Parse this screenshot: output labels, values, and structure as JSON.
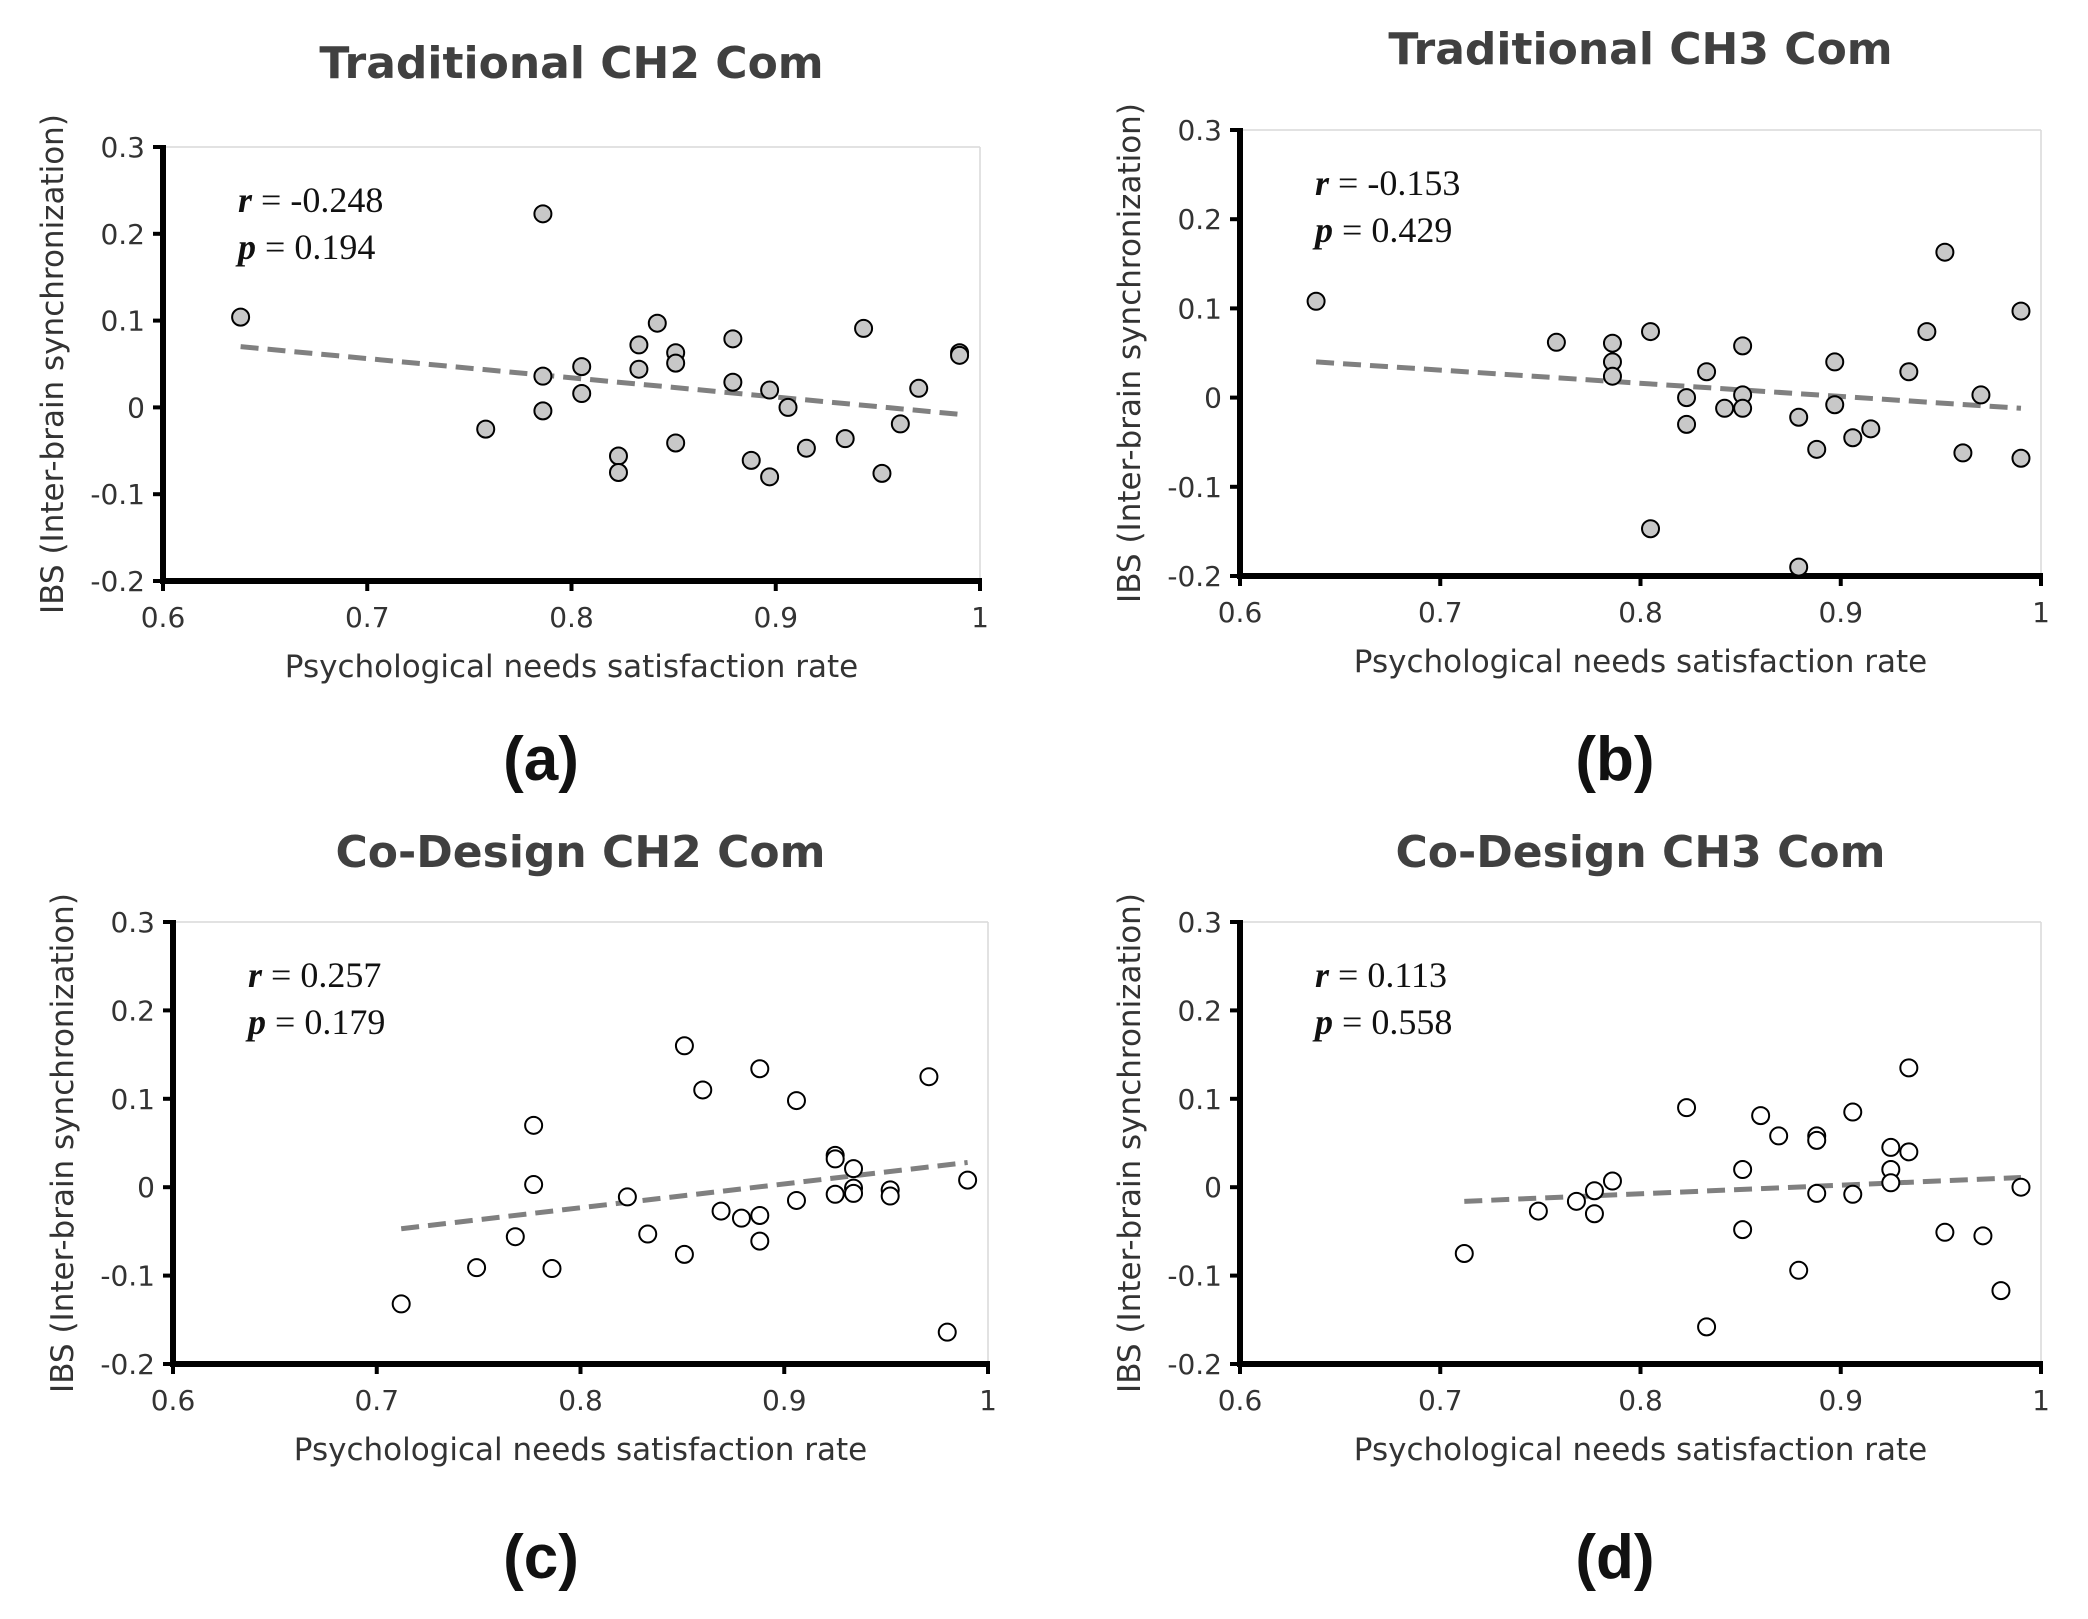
{
  "chart_data": [
    {
      "id": "a",
      "type": "scatter",
      "title": "Traditional CH2 Com",
      "panel_label": "(a)",
      "xlabel": "Psychological needs satisfaction rate",
      "ylabel": "IBS (Inter-brain synchronization)",
      "xlim": [
        0.6,
        1.0
      ],
      "ylim": [
        -0.2,
        0.3
      ],
      "xticks": [
        "0.6",
        "0.7",
        "0.8",
        "0.9",
        "1"
      ],
      "yticks": [
        "-0.2",
        "-0.1",
        "0",
        "0.1",
        "0.2",
        "0.3"
      ],
      "grid": false,
      "marker_fill": "#c8c8c8",
      "stats": {
        "r_label": "r",
        "r_value": "-0.248",
        "p_label": "p",
        "p_value": "0.194"
      },
      "trendline": {
        "x": [
          0.638,
          0.99
        ],
        "y": [
          0.07,
          -0.008
        ]
      },
      "points": [
        {
          "x": 0.638,
          "y": 0.104
        },
        {
          "x": 0.758,
          "y": -0.025
        },
        {
          "x": 0.786,
          "y": 0.223
        },
        {
          "x": 0.786,
          "y": 0.036
        },
        {
          "x": 0.786,
          "y": -0.004
        },
        {
          "x": 0.805,
          "y": 0.047
        },
        {
          "x": 0.805,
          "y": 0.016
        },
        {
          "x": 0.823,
          "y": -0.056
        },
        {
          "x": 0.823,
          "y": -0.075
        },
        {
          "x": 0.833,
          "y": 0.072
        },
        {
          "x": 0.833,
          "y": 0.044
        },
        {
          "x": 0.842,
          "y": 0.097
        },
        {
          "x": 0.851,
          "y": 0.063
        },
        {
          "x": 0.851,
          "y": 0.051
        },
        {
          "x": 0.851,
          "y": -0.041
        },
        {
          "x": 0.879,
          "y": 0.079
        },
        {
          "x": 0.879,
          "y": 0.029
        },
        {
          "x": 0.888,
          "y": -0.061
        },
        {
          "x": 0.897,
          "y": 0.02
        },
        {
          "x": 0.897,
          "y": -0.08
        },
        {
          "x": 0.906,
          "y": 0.0
        },
        {
          "x": 0.915,
          "y": -0.047
        },
        {
          "x": 0.934,
          "y": -0.036
        },
        {
          "x": 0.943,
          "y": 0.091
        },
        {
          "x": 0.952,
          "y": -0.076
        },
        {
          "x": 0.961,
          "y": -0.019
        },
        {
          "x": 0.97,
          "y": 0.022
        },
        {
          "x": 0.99,
          "y": 0.063
        },
        {
          "x": 0.99,
          "y": 0.06
        }
      ]
    },
    {
      "id": "b",
      "type": "scatter",
      "title": "Traditional CH3 Com",
      "panel_label": "(b)",
      "xlabel": "Psychological needs satisfaction rate",
      "ylabel": "IBS (Inter-brain synchronization)",
      "xlim": [
        0.6,
        1.0
      ],
      "ylim": [
        -0.2,
        0.3
      ],
      "xticks": [
        "0.6",
        "0.7",
        "0.8",
        "0.9",
        "1"
      ],
      "yticks": [
        "-0.2",
        "-0.1",
        "0",
        "0.1",
        "0.2",
        "0.3"
      ],
      "grid": false,
      "marker_fill": "#c8c8c8",
      "stats": {
        "r_label": "r",
        "r_value": "-0.153",
        "p_label": "p",
        "p_value": "0.429"
      },
      "trendline": {
        "x": [
          0.638,
          0.99
        ],
        "y": [
          0.04,
          -0.012
        ]
      },
      "points": [
        {
          "x": 0.638,
          "y": 0.108
        },
        {
          "x": 0.758,
          "y": 0.062
        },
        {
          "x": 0.786,
          "y": 0.061
        },
        {
          "x": 0.786,
          "y": 0.04
        },
        {
          "x": 0.786,
          "y": 0.024
        },
        {
          "x": 0.805,
          "y": 0.074
        },
        {
          "x": 0.805,
          "y": -0.147
        },
        {
          "x": 0.823,
          "y": 0.0
        },
        {
          "x": 0.823,
          "y": -0.03
        },
        {
          "x": 0.833,
          "y": 0.029
        },
        {
          "x": 0.842,
          "y": -0.012
        },
        {
          "x": 0.851,
          "y": 0.058
        },
        {
          "x": 0.851,
          "y": 0.003
        },
        {
          "x": 0.851,
          "y": -0.012
        },
        {
          "x": 0.879,
          "y": -0.022
        },
        {
          "x": 0.879,
          "y": -0.19
        },
        {
          "x": 0.888,
          "y": -0.058
        },
        {
          "x": 0.897,
          "y": 0.04
        },
        {
          "x": 0.897,
          "y": -0.008
        },
        {
          "x": 0.906,
          "y": -0.045
        },
        {
          "x": 0.915,
          "y": -0.035
        },
        {
          "x": 0.934,
          "y": 0.029
        },
        {
          "x": 0.943,
          "y": 0.074
        },
        {
          "x": 0.952,
          "y": 0.163
        },
        {
          "x": 0.961,
          "y": -0.062
        },
        {
          "x": 0.97,
          "y": 0.003
        },
        {
          "x": 0.99,
          "y": 0.097
        },
        {
          "x": 0.99,
          "y": -0.068
        }
      ]
    },
    {
      "id": "c",
      "type": "scatter",
      "title": "Co-Design CH2 Com",
      "panel_label": "(c)",
      "xlabel": "Psychological needs satisfaction rate",
      "ylabel": "IBS (Inter-brain synchronization)",
      "xlim": [
        0.6,
        1.0
      ],
      "ylim": [
        -0.2,
        0.3
      ],
      "xticks": [
        "0.6",
        "0.7",
        "0.8",
        "0.9",
        "1"
      ],
      "yticks": [
        "-0.2",
        "-0.1",
        "0",
        "0.1",
        "0.2",
        "0.3"
      ],
      "grid": false,
      "marker_fill": "#ffffff",
      "stats": {
        "r_label": "r",
        "r_value": "0.257",
        "p_label": "p",
        "p_value": "0.179"
      },
      "trendline": {
        "x": [
          0.712,
          0.99
        ],
        "y": [
          -0.047,
          0.028
        ]
      },
      "points": [
        {
          "x": 0.712,
          "y": -0.132
        },
        {
          "x": 0.749,
          "y": -0.091
        },
        {
          "x": 0.768,
          "y": -0.056
        },
        {
          "x": 0.777,
          "y": 0.07
        },
        {
          "x": 0.777,
          "y": 0.003
        },
        {
          "x": 0.786,
          "y": -0.092
        },
        {
          "x": 0.823,
          "y": -0.011
        },
        {
          "x": 0.833,
          "y": -0.053
        },
        {
          "x": 0.851,
          "y": 0.16
        },
        {
          "x": 0.851,
          "y": -0.076
        },
        {
          "x": 0.86,
          "y": 0.11
        },
        {
          "x": 0.869,
          "y": -0.027
        },
        {
          "x": 0.879,
          "y": -0.035
        },
        {
          "x": 0.888,
          "y": 0.134
        },
        {
          "x": 0.888,
          "y": -0.032
        },
        {
          "x": 0.888,
          "y": -0.061
        },
        {
          "x": 0.906,
          "y": 0.098
        },
        {
          "x": 0.906,
          "y": -0.015
        },
        {
          "x": 0.925,
          "y": 0.036
        },
        {
          "x": 0.925,
          "y": 0.032
        },
        {
          "x": 0.925,
          "y": -0.008
        },
        {
          "x": 0.934,
          "y": 0.021
        },
        {
          "x": 0.934,
          "y": -0.001
        },
        {
          "x": 0.934,
          "y": -0.007
        },
        {
          "x": 0.952,
          "y": -0.003
        },
        {
          "x": 0.952,
          "y": -0.01
        },
        {
          "x": 0.971,
          "y": 0.125
        },
        {
          "x": 0.98,
          "y": -0.164
        },
        {
          "x": 0.99,
          "y": 0.008
        }
      ]
    },
    {
      "id": "d",
      "type": "scatter",
      "title": "Co-Design CH3 Com",
      "panel_label": "(d)",
      "xlabel": "Psychological needs satisfaction rate",
      "ylabel": "IBS (Inter-brain synchronization)",
      "xlim": [
        0.6,
        1.0
      ],
      "ylim": [
        -0.2,
        0.3
      ],
      "xticks": [
        "0.6",
        "0.7",
        "0.8",
        "0.9",
        "1"
      ],
      "yticks": [
        "-0.2",
        "-0.1",
        "0",
        "0.1",
        "0.2",
        "0.3"
      ],
      "grid": false,
      "marker_fill": "#ffffff",
      "stats": {
        "r_label": "r",
        "r_value": "0.113",
        "p_label": "p",
        "p_value": "0.558"
      },
      "trendline": {
        "x": [
          0.712,
          0.99
        ],
        "y": [
          -0.016,
          0.011
        ]
      },
      "points": [
        {
          "x": 0.712,
          "y": -0.075
        },
        {
          "x": 0.749,
          "y": -0.027
        },
        {
          "x": 0.768,
          "y": -0.016
        },
        {
          "x": 0.777,
          "y": -0.004
        },
        {
          "x": 0.777,
          "y": -0.03
        },
        {
          "x": 0.786,
          "y": 0.007
        },
        {
          "x": 0.823,
          "y": 0.09
        },
        {
          "x": 0.833,
          "y": -0.158
        },
        {
          "x": 0.851,
          "y": 0.02
        },
        {
          "x": 0.851,
          "y": -0.048
        },
        {
          "x": 0.86,
          "y": 0.081
        },
        {
          "x": 0.869,
          "y": 0.058
        },
        {
          "x": 0.879,
          "y": -0.094
        },
        {
          "x": 0.888,
          "y": 0.058
        },
        {
          "x": 0.888,
          "y": 0.053
        },
        {
          "x": 0.888,
          "y": -0.007
        },
        {
          "x": 0.906,
          "y": 0.085
        },
        {
          "x": 0.906,
          "y": -0.008
        },
        {
          "x": 0.925,
          "y": 0.045
        },
        {
          "x": 0.925,
          "y": 0.02
        },
        {
          "x": 0.925,
          "y": 0.005
        },
        {
          "x": 0.934,
          "y": 0.135
        },
        {
          "x": 0.934,
          "y": 0.04
        },
        {
          "x": 0.952,
          "y": -0.051
        },
        {
          "x": 0.971,
          "y": -0.055
        },
        {
          "x": 0.98,
          "y": -0.117
        },
        {
          "x": 0.99,
          "y": 0.0
        }
      ]
    }
  ]
}
